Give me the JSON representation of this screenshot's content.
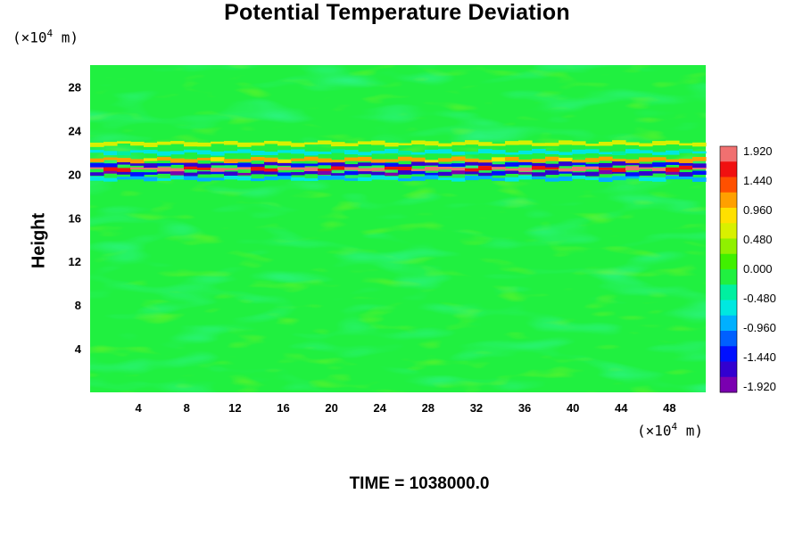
{
  "chart_data": {
    "type": "heatmap",
    "title": "Potential Temperature Deviation",
    "ylabel": "Height",
    "xlabel": "",
    "x_unit_prefix": "(×10",
    "x_unit_exponent": "4",
    "x_unit_suffix": " m)",
    "y_unit_prefix": "(×10",
    "y_unit_exponent": "4",
    "y_unit_suffix": " m)",
    "xlim": [
      0,
      51
    ],
    "ylim": [
      0,
      30
    ],
    "xticks": [
      4,
      8,
      12,
      16,
      20,
      24,
      28,
      32,
      36,
      40,
      44,
      48
    ],
    "yticks": [
      4,
      8,
      12,
      16,
      20,
      24,
      28
    ],
    "colorbar": {
      "ticks": [
        "1.920",
        "1.440",
        "0.960",
        "0.480",
        "0.000",
        "-0.480",
        "-0.960",
        "-1.440",
        "-1.920"
      ],
      "range": [
        -1.92,
        1.92
      ],
      "colors": [
        "#7a00b0",
        "#3200d0",
        "#0010ff",
        "#0060ff",
        "#00b0ff",
        "#00e8e0",
        "#00f0a0",
        "#20f040",
        "#40f000",
        "#90f000",
        "#d8f000",
        "#ffe000",
        "#ffa000",
        "#ff5000",
        "#f01010",
        "#f07070"
      ]
    },
    "field": {
      "background_value": -0.06,
      "band_center_height": 20.5,
      "band_values_by_height": [
        {
          "height": 19.6,
          "value": -0.8
        },
        {
          "height": 20.1,
          "value": -1.7
        },
        {
          "height": 20.5,
          "value": 1.9
        },
        {
          "height": 20.9,
          "value": -1.6
        },
        {
          "height": 21.3,
          "value": 1.2
        },
        {
          "height": 22.0,
          "value": -0.6
        },
        {
          "height": 22.8,
          "value": 0.7
        }
      ]
    }
  },
  "footer": {
    "time_label": "TIME = 1038000.0"
  }
}
